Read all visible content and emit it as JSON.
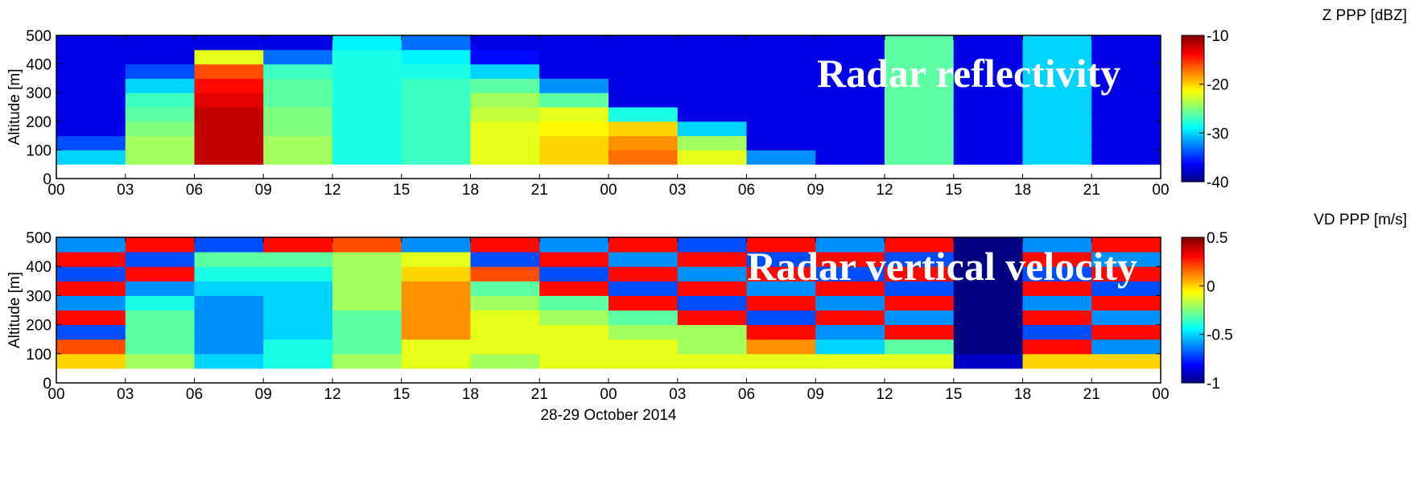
{
  "chart_data": [
    {
      "type": "heatmap",
      "colormap": "jet",
      "ylabel": "Altitude [m]",
      "colorbar_label": "Z PPP [dBZ]",
      "annotation": "Radar reflectivity",
      "xlim": [
        0,
        48
      ],
      "ylim": [
        0,
        500
      ],
      "clim": [
        -40,
        -10
      ],
      "xticks": [
        {
          "value": 0,
          "label": "00"
        },
        {
          "value": 3,
          "label": "03"
        },
        {
          "value": 6,
          "label": "06"
        },
        {
          "value": 9,
          "label": "09"
        },
        {
          "value": 12,
          "label": "12"
        },
        {
          "value": 15,
          "label": "15"
        },
        {
          "value": 18,
          "label": "18"
        },
        {
          "value": 21,
          "label": "21"
        },
        {
          "value": 24,
          "label": "00"
        },
        {
          "value": 27,
          "label": "03"
        },
        {
          "value": 30,
          "label": "06"
        },
        {
          "value": 33,
          "label": "09"
        },
        {
          "value": 36,
          "label": "12"
        },
        {
          "value": 39,
          "label": "15"
        },
        {
          "value": 42,
          "label": "18"
        },
        {
          "value": 45,
          "label": "21"
        },
        {
          "value": 48,
          "label": "00"
        }
      ],
      "yticks": [
        0,
        100,
        200,
        300,
        400,
        500
      ],
      "cticks": [
        -40,
        -30,
        -20,
        -10
      ],
      "xbins": [
        0,
        3,
        6,
        9,
        12,
        15,
        18,
        21,
        24,
        27,
        30,
        33,
        36,
        39,
        42,
        45,
        48
      ],
      "ybins": [
        50,
        100,
        150,
        200,
        250,
        300,
        350,
        400,
        450,
        500
      ],
      "values": [
        [
          -30,
          -24,
          -12,
          -24,
          -28,
          -27,
          -22,
          -20,
          -17,
          -22,
          -32,
          -37,
          -26,
          -37,
          -30,
          -37
        ],
        [
          -34,
          -24,
          -12,
          -24,
          -28,
          -27,
          -22,
          -20,
          -18,
          -24,
          -37,
          -37,
          -26,
          -37,
          -30,
          -37
        ],
        [
          -37,
          -25,
          -12,
          -25,
          -28,
          -27,
          -22,
          -21,
          -20,
          -30,
          -37,
          -37,
          -26,
          -37,
          -30,
          -37
        ],
        [
          -37,
          -26,
          -12,
          -25,
          -28,
          -27,
          -23,
          -22,
          -28,
          -37,
          -37,
          -37,
          -26,
          -37,
          -30,
          -37
        ],
        [
          -37,
          -27,
          -13,
          -26,
          -28,
          -27,
          -24,
          -26,
          -37,
          -37,
          -37,
          -37,
          -26,
          -37,
          -30,
          -37
        ],
        [
          -37,
          -30,
          -14,
          -26,
          -28,
          -27,
          -26,
          -32,
          -37,
          -37,
          -37,
          -37,
          -26,
          -37,
          -30,
          -37
        ],
        [
          -37,
          -34,
          -16,
          -27,
          -28,
          -28,
          -30,
          -37,
          -37,
          -37,
          -37,
          -37,
          -26,
          -37,
          -30,
          -37
        ],
        [
          -37,
          -37,
          -22,
          -33,
          -28,
          -29,
          -36,
          -37,
          -37,
          -37,
          -37,
          -37,
          -26,
          -37,
          -30,
          -37
        ],
        [
          -37,
          -37,
          -37,
          -37,
          -29,
          -33,
          -37,
          -37,
          -37,
          -37,
          -37,
          -37,
          -26,
          -37,
          -30,
          -37
        ]
      ]
    },
    {
      "type": "heatmap",
      "colormap": "jet",
      "ylabel": "Altitude [m]",
      "xlabel": "28-29 October 2014",
      "colorbar_label": "VD PPP [m/s]",
      "annotation": "Radar vertical velocity",
      "xlim": [
        0,
        48
      ],
      "ylim": [
        0,
        500
      ],
      "clim": [
        -1,
        0.5
      ],
      "xticks": [
        {
          "value": 0,
          "label": "00"
        },
        {
          "value": 3,
          "label": "03"
        },
        {
          "value": 6,
          "label": "06"
        },
        {
          "value": 9,
          "label": "09"
        },
        {
          "value": 12,
          "label": "12"
        },
        {
          "value": 15,
          "label": "15"
        },
        {
          "value": 18,
          "label": "18"
        },
        {
          "value": 21,
          "label": "21"
        },
        {
          "value": 24,
          "label": "00"
        },
        {
          "value": 27,
          "label": "03"
        },
        {
          "value": 30,
          "label": "06"
        },
        {
          "value": 33,
          "label": "09"
        },
        {
          "value": 36,
          "label": "12"
        },
        {
          "value": 39,
          "label": "15"
        },
        {
          "value": 42,
          "label": "18"
        },
        {
          "value": 45,
          "label": "21"
        },
        {
          "value": 48,
          "label": "00"
        }
      ],
      "yticks": [
        0,
        100,
        200,
        300,
        400,
        500
      ],
      "cticks": [
        -1,
        -0.5,
        0,
        0.5
      ],
      "xbins": [
        0,
        3,
        6,
        9,
        12,
        15,
        18,
        21,
        24,
        27,
        30,
        33,
        36,
        39,
        42,
        45,
        48
      ],
      "ybins": [
        50,
        100,
        150,
        200,
        250,
        300,
        350,
        400,
        450,
        500
      ],
      "values": [
        [
          0,
          -0.2,
          -0.5,
          -0.4,
          -0.2,
          -0.1,
          -0.2,
          -0.1,
          -0.1,
          -0.1,
          -0.1,
          -0.1,
          -0.1,
          -0.9,
          0,
          0
        ],
        [
          0.2,
          -0.3,
          -0.6,
          -0.4,
          -0.3,
          -0.1,
          -0.1,
          -0.1,
          -0.1,
          -0.2,
          0.1,
          -0.5,
          -0.3,
          -1,
          0.3,
          -0.6
        ],
        [
          -0.7,
          -0.3,
          -0.6,
          -0.5,
          -0.3,
          0.1,
          -0.1,
          -0.1,
          -0.2,
          -0.2,
          0.3,
          -0.6,
          0.3,
          -1,
          -0.7,
          0.3
        ],
        [
          0.3,
          -0.3,
          -0.6,
          -0.5,
          -0.3,
          0.1,
          -0.1,
          -0.2,
          -0.3,
          0.3,
          -0.7,
          0.3,
          -0.6,
          -1,
          0.3,
          -0.6
        ],
        [
          -0.6,
          -0.4,
          -0.6,
          -0.5,
          -0.2,
          0.1,
          -0.2,
          -0.3,
          0.3,
          -0.7,
          0.3,
          -0.6,
          0.3,
          -1,
          -0.6,
          0.3
        ],
        [
          0.3,
          -0.6,
          -0.5,
          -0.5,
          -0.2,
          0.1,
          -0.3,
          0.3,
          -0.7,
          0.3,
          -0.6,
          0.3,
          -0.7,
          -1,
          0.3,
          -0.7
        ],
        [
          -0.7,
          0.3,
          -0.4,
          -0.4,
          -0.2,
          0,
          0.2,
          -0.7,
          0.3,
          -0.6,
          0.3,
          -0.7,
          0.3,
          -1,
          -0.7,
          0.3
        ],
        [
          0.3,
          -0.7,
          -0.3,
          -0.3,
          -0.2,
          -0.1,
          -0.7,
          0.3,
          -0.6,
          0.3,
          -0.7,
          0.3,
          -0.7,
          -1,
          0.3,
          -0.6
        ],
        [
          -0.6,
          0.3,
          -0.7,
          0.3,
          0.2,
          -0.6,
          0.3,
          -0.6,
          0.3,
          -0.7,
          0.3,
          -0.6,
          0.3,
          -1,
          -0.6,
          0.3
        ]
      ]
    }
  ]
}
